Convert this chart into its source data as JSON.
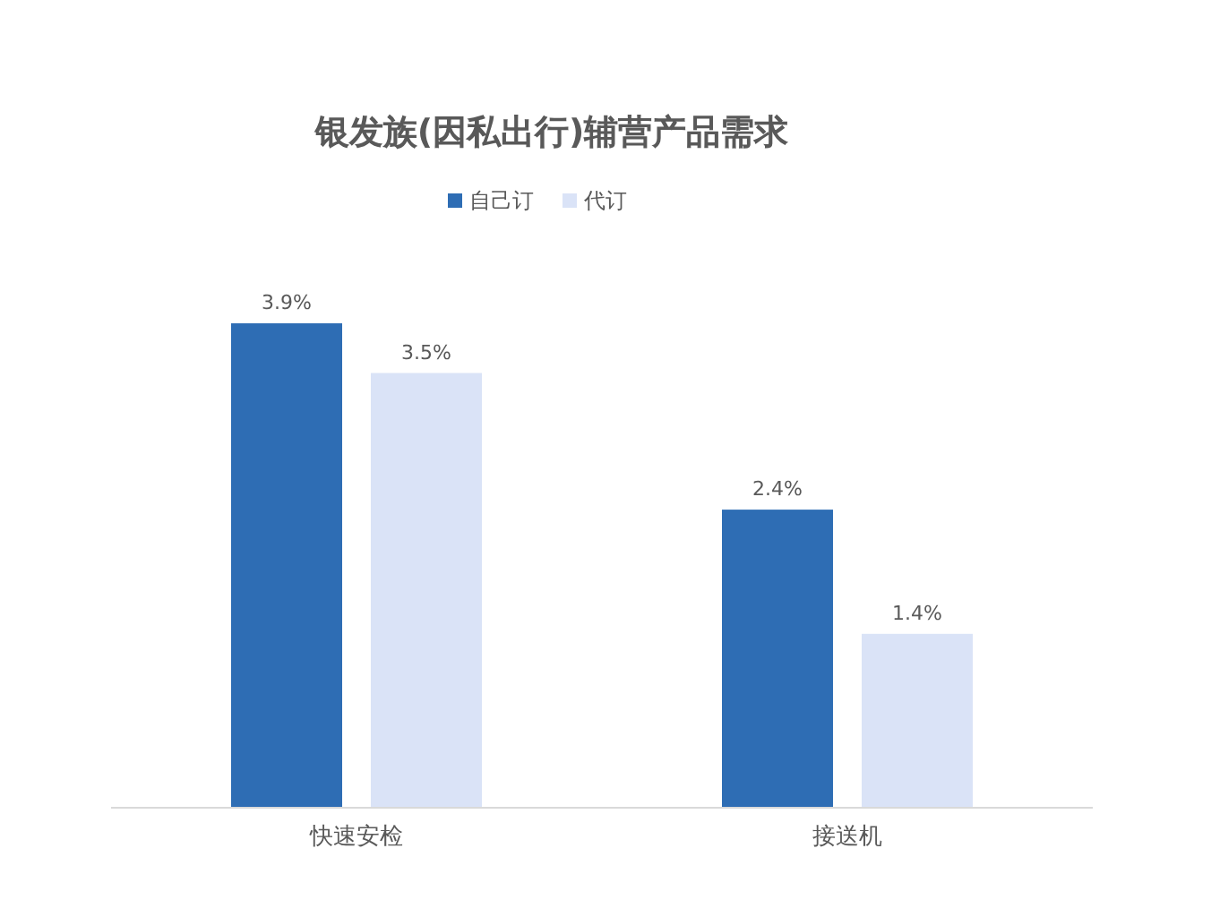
{
  "chart_data": {
    "type": "bar",
    "title": "银发族(因私出行)辅营产品需求",
    "categories": [
      "快速安检",
      "接送机"
    ],
    "series": [
      {
        "name": "自己订",
        "color": "#2e6db4",
        "values": [
          3.9,
          2.4
        ],
        "value_labels": [
          "3.9%",
          "2.4%"
        ]
      },
      {
        "name": "代订",
        "color": "#dae3f7",
        "values": [
          3.5,
          1.4
        ],
        "value_labels": [
          "3.5%",
          "1.4%"
        ]
      }
    ],
    "legend": "top",
    "grid": false
  }
}
